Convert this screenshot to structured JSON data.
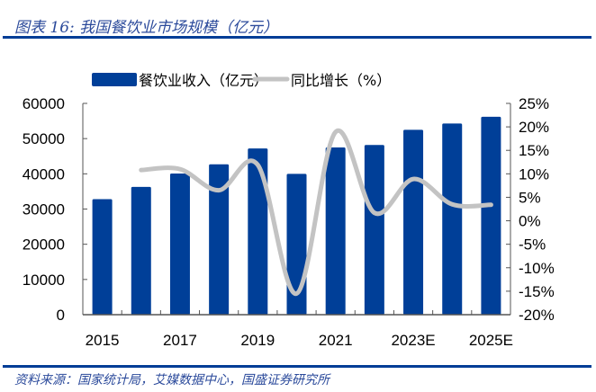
{
  "header": {
    "title": "图表 16:  我国餐饮业市场规模（亿元）"
  },
  "footer": {
    "source": "资料来源：国家统计局，艾媒数据中心，国盛证券研究所"
  },
  "colors": {
    "bar": "#003f98",
    "line": "#c3c3c3",
    "rule": "#003d96"
  },
  "chart_data": {
    "type": "bar+line",
    "categories": [
      "2015",
      "2016",
      "2017",
      "2018",
      "2019",
      "2020",
      "2021",
      "2022",
      "2023E",
      "2024E",
      "2025E"
    ],
    "x_tick_labels": [
      "2015",
      "2017",
      "2019",
      "2021",
      "2023E",
      "2025E"
    ],
    "series": [
      {
        "name": "餐饮业收入（亿元）",
        "type": "bar",
        "axis": "left",
        "values": [
          32800,
          36300,
          40100,
          42700,
          47200,
          40000,
          47500,
          48200,
          52500,
          54300,
          56200
        ]
      },
      {
        "name": "同比增长（%）",
        "type": "line",
        "axis": "right",
        "values": [
          null,
          10.8,
          11.0,
          6.5,
          11.9,
          -15.5,
          18.9,
          1.7,
          8.9,
          3.5,
          3.4
        ]
      }
    ],
    "y_left": {
      "lim": [
        0,
        60000
      ],
      "ticks": [
        "0",
        "10000",
        "20000",
        "30000",
        "40000",
        "50000",
        "60000"
      ]
    },
    "y_right": {
      "lim": [
        -20,
        25
      ],
      "ticks": [
        "-20%",
        "-15%",
        "-10%",
        "-5%",
        "0%",
        "5%",
        "10%",
        "15%",
        "20%",
        "25%"
      ]
    },
    "legend": "top",
    "grid": false
  }
}
